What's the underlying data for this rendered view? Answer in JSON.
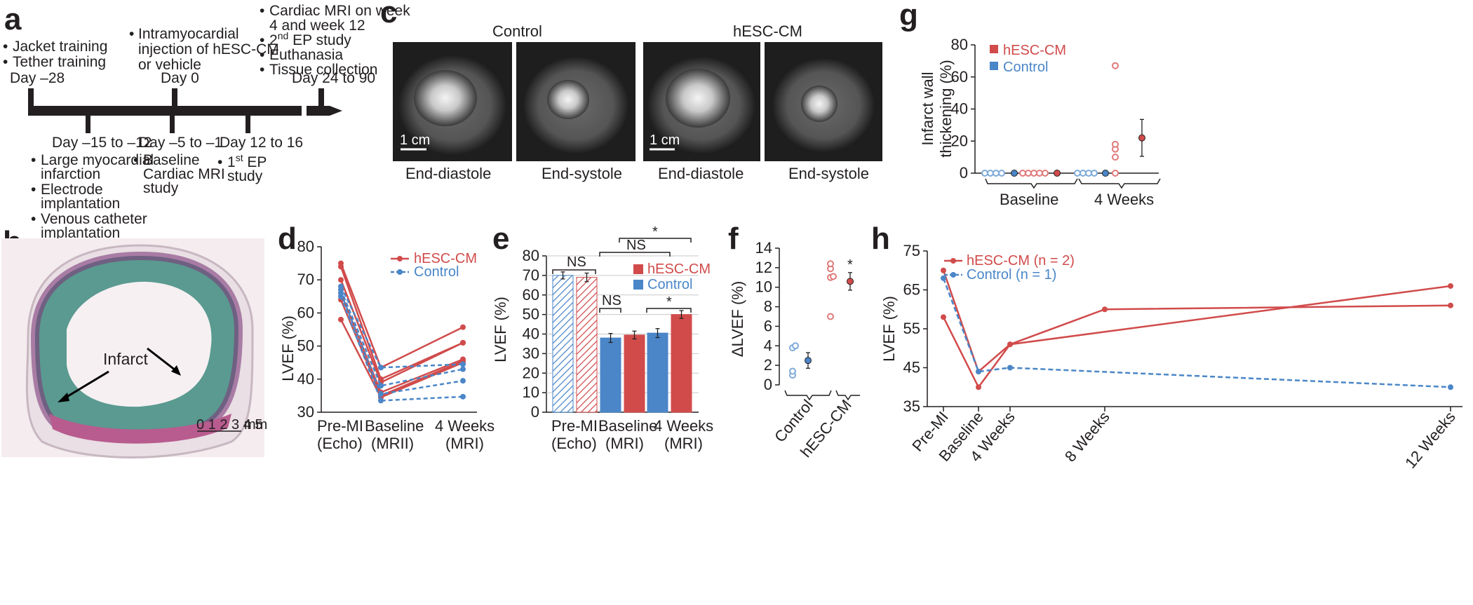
{
  "panel_letters": {
    "a": "a",
    "b": "b",
    "c": "c",
    "d": "d",
    "e": "e",
    "f": "f",
    "g": "g",
    "h": "h"
  },
  "timeline": {
    "top_notes": [
      {
        "day": "Day –28",
        "bullets": [
          "Jacket training",
          "Tether training"
        ]
      },
      {
        "day": "Day 0",
        "bullets": [
          "Intramyocardial injection of hESC-CM or vehicle"
        ]
      },
      {
        "day": "Day 24 to 90",
        "bullets": [
          "Cardiac MRI on week 4 and week 12",
          "2nd EP study",
          "Euthanasia",
          "Tissue collection"
        ]
      }
    ],
    "bottom_notes": [
      {
        "day": "Day –15 to –12",
        "bullets": [
          "Large myocardial infarction",
          "Electrode implantation",
          "Venous catheter implantation"
        ]
      },
      {
        "day": "Day –5 to –1",
        "bullets": [
          "Baseline Cardiac MRI study"
        ]
      },
      {
        "day": "Day 12 to 16",
        "bullets": [
          "1st EP study"
        ]
      }
    ]
  },
  "histology": {
    "label": "Infarct",
    "scale_ticks": "0 1 2 3 4 5",
    "scale_unit": "mm"
  },
  "mri": {
    "groups": [
      "Control",
      "hESC-CM"
    ],
    "phases": [
      "End-diastole",
      "End-systole",
      "End-diastole",
      "End-systole"
    ],
    "scale_label": "1 cm"
  },
  "chart_data": [
    {
      "panel": "d",
      "type": "line",
      "ylabel": "LVEF (%)",
      "ylim": [
        30,
        80
      ],
      "yticks": [
        30,
        40,
        50,
        60,
        70,
        80
      ],
      "categories": [
        "Pre-MI\n(Echo)",
        "Baseline\n(MRII)",
        "4 Weeks\n(MRI)"
      ],
      "legend": [
        "hESC-CM",
        "Control"
      ],
      "series": [
        {
          "name": "hESC-CM",
          "values": [
            75,
            43.5,
            55.7
          ]
        },
        {
          "name": "hESC-CM",
          "values": [
            74,
            40,
            51
          ]
        },
        {
          "name": "hESC-CM",
          "values": [
            70,
            39,
            51
          ]
        },
        {
          "name": "hESC-CM",
          "values": [
            66,
            36,
            46
          ]
        },
        {
          "name": "hESC-CM",
          "values": [
            64,
            35,
            45.5
          ]
        },
        {
          "name": "hESC-CM",
          "values": [
            58,
            34.5,
            45
          ]
        },
        {
          "name": "Control",
          "values": [
            68,
            43.5,
            44.5
          ]
        },
        {
          "name": "Control",
          "values": [
            67,
            38,
            43
          ]
        },
        {
          "name": "Control",
          "values": [
            66,
            35.5,
            39.5
          ]
        },
        {
          "name": "Control",
          "values": [
            65,
            33.5,
            34.7
          ]
        }
      ]
    },
    {
      "panel": "e",
      "type": "bar",
      "ylabel": "LVEF (%)",
      "ylim": [
        0,
        80
      ],
      "yticks": [
        0,
        10,
        20,
        30,
        40,
        50,
        60,
        70,
        80
      ],
      "categories": [
        "Pre-MI\n(Echo)",
        "Baseline\n(MRI)",
        "4 Weeks\n(MRI)"
      ],
      "legend": [
        "hESC-CM",
        "Control"
      ],
      "bars": [
        {
          "group": "Control",
          "category": "Pre-MI",
          "value": 70,
          "err": 1.8,
          "hatched": true
        },
        {
          "group": "hESC-CM",
          "category": "Pre-MI",
          "value": 69,
          "err": 2.2,
          "hatched": true
        },
        {
          "group": "Control",
          "category": "Baseline",
          "value": 38,
          "err": 2.3,
          "hatched": false
        },
        {
          "group": "hESC-CM",
          "category": "Baseline",
          "value": 39.5,
          "err": 2.0,
          "hatched": false
        },
        {
          "group": "Control",
          "category": "4 Weeks",
          "value": 40.5,
          "err": 2.3,
          "hatched": false
        },
        {
          "group": "hESC-CM",
          "category": "4 Weeks",
          "value": 50,
          "err": 2.0,
          "hatched": false
        }
      ],
      "annotations": [
        "NS",
        "NS",
        "NS",
        "*",
        "*"
      ]
    },
    {
      "panel": "f",
      "type": "scatter",
      "ylabel": "ΔLVEF (%)",
      "ylim": [
        0,
        14
      ],
      "yticks": [
        0,
        2,
        4,
        6,
        8,
        10,
        12,
        14
      ],
      "categories": [
        "Control",
        "hESC-CM"
      ],
      "groups": [
        {
          "name": "Control",
          "points": [
            1.0,
            1.4,
            3.8,
            4.0
          ],
          "mean": 2.5,
          "err": 0.8
        },
        {
          "name": "hESC-CM",
          "points": [
            7.0,
            11.0,
            11.1,
            11.9,
            12.4
          ],
          "mean": 10.6,
          "err": 0.9
        }
      ],
      "annotation": "*"
    },
    {
      "panel": "g",
      "type": "scatter",
      "ylabel": "Infarct wall\nthickening (%)",
      "ylim": [
        0,
        80
      ],
      "yticks": [
        0,
        20,
        40,
        60,
        80
      ],
      "categories": [
        "Baseline",
        "4 Weeks"
      ],
      "legend": [
        "hESC-CM",
        "Control"
      ],
      "groups": [
        {
          "name": "Control",
          "time": "Baseline",
          "points": [
            0,
            0,
            0,
            0
          ],
          "mean": 0,
          "err": 0
        },
        {
          "name": "hESC-CM",
          "time": "Baseline",
          "points": [
            0,
            0,
            0,
            0,
            0
          ],
          "mean": 0,
          "err": 0
        },
        {
          "name": "Control",
          "time": "4 Weeks",
          "points": [
            0,
            0,
            0,
            0
          ],
          "mean": 0,
          "err": 0
        },
        {
          "name": "hESC-CM",
          "time": "4 Weeks",
          "points": [
            0,
            10,
            15,
            18,
            67
          ],
          "mean": 22,
          "err": 11.5
        }
      ]
    },
    {
      "panel": "h",
      "type": "line",
      "ylabel": "LVEF (%)",
      "ylim": [
        35,
        75
      ],
      "yticks": [
        35,
        45,
        55,
        65,
        75
      ],
      "categories": [
        "Pre-MI",
        "Baseline",
        "4 Weeks",
        "8 Weeks",
        "12 Weeks"
      ],
      "x": [
        0,
        1,
        2,
        4,
        6
      ],
      "legend": [
        "hESC-CM (n = 2)",
        "Control (n = 1)"
      ],
      "series": [
        {
          "name": "hESC-CM",
          "x": [
            0,
            1,
            2,
            4,
            6
          ],
          "values": [
            58,
            40,
            51,
            60,
            61
          ]
        },
        {
          "name": "hESC-CM",
          "x": [
            0,
            1,
            2,
            6
          ],
          "values": [
            70,
            44,
            51,
            66
          ]
        },
        {
          "name": "Control",
          "x": [
            0,
            1,
            2,
            6
          ],
          "values": [
            68,
            44,
            45,
            40
          ]
        }
      ]
    }
  ],
  "colors": {
    "red": "#d14b4b",
    "blue": "#4a86c8",
    "light_red": "#e07a7a",
    "light_blue": "#7eaad8"
  }
}
